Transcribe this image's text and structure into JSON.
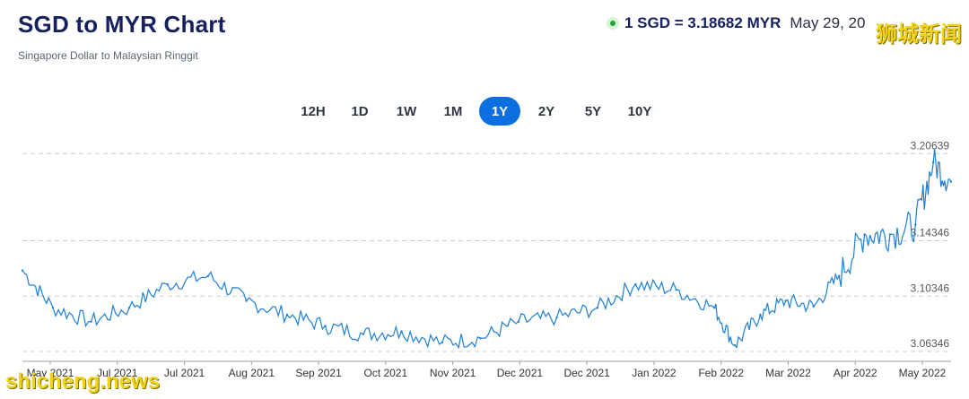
{
  "header": {
    "title": "SGD to MYR Chart",
    "subtitle": "Singapore Dollar to Malaysian Ringgit",
    "rate_text": "1 SGD = 3.18682 MYR",
    "date_text": "May 29, 20",
    "status_color": "#1fa33a"
  },
  "tabs": [
    {
      "label": "12H",
      "active": false
    },
    {
      "label": "1D",
      "active": false
    },
    {
      "label": "1W",
      "active": false
    },
    {
      "label": "1M",
      "active": false
    },
    {
      "label": "1Y",
      "active": true
    },
    {
      "label": "2Y",
      "active": false
    },
    {
      "label": "5Y",
      "active": false
    },
    {
      "label": "10Y",
      "active": false
    }
  ],
  "colors": {
    "line": "#1f7fd4",
    "grid": "#c8cdd3",
    "accent": "#0b6fe0",
    "title": "#16205c"
  },
  "watermarks": {
    "top": "狮城新闻",
    "bottom": "shicheng.news"
  },
  "chart_data": {
    "type": "line",
    "title": "",
    "xlabel": "",
    "ylabel": "",
    "y_ticks": [
      3.06346,
      3.10346,
      3.14346,
      3.20639
    ],
    "ylim": [
      3.057,
      3.215
    ],
    "grid": "horizontal dashed",
    "x_tick_labels": [
      "May 2021",
      "Jul 2021",
      "Jul 2021",
      "Aug 2021",
      "Sep 2021",
      "Oct 2021",
      "Nov 2021",
      "Dec 2021",
      "Dec 2021",
      "Jan 2022",
      "Feb 2022",
      "Mar 2022",
      "Apr 2022",
      "May 2022"
    ],
    "series": [
      {
        "name": "",
        "x": [
          "2021-05-29",
          "2021-06-10",
          "2021-06-25",
          "2021-07-10",
          "2021-07-25",
          "2021-08-10",
          "2021-08-25",
          "2021-09-10",
          "2021-09-25",
          "2021-10-10",
          "2021-10-25",
          "2021-11-10",
          "2021-11-25",
          "2021-12-10",
          "2021-12-25",
          "2022-01-10",
          "2022-01-25",
          "2022-02-10",
          "2022-02-25",
          "2022-03-05",
          "2022-03-15",
          "2022-03-25",
          "2022-04-05",
          "2022-04-15",
          "2022-04-25",
          "2022-05-05",
          "2022-05-15",
          "2022-05-22",
          "2022-05-29"
        ],
        "values": [
          3.122,
          3.095,
          3.085,
          3.095,
          3.112,
          3.118,
          3.1,
          3.09,
          3.082,
          3.076,
          3.078,
          3.07,
          3.073,
          3.085,
          3.088,
          3.095,
          3.112,
          3.108,
          3.095,
          3.068,
          3.09,
          3.1,
          3.096,
          3.118,
          3.148,
          3.148,
          3.155,
          3.2,
          3.186
        ]
      }
    ]
  }
}
